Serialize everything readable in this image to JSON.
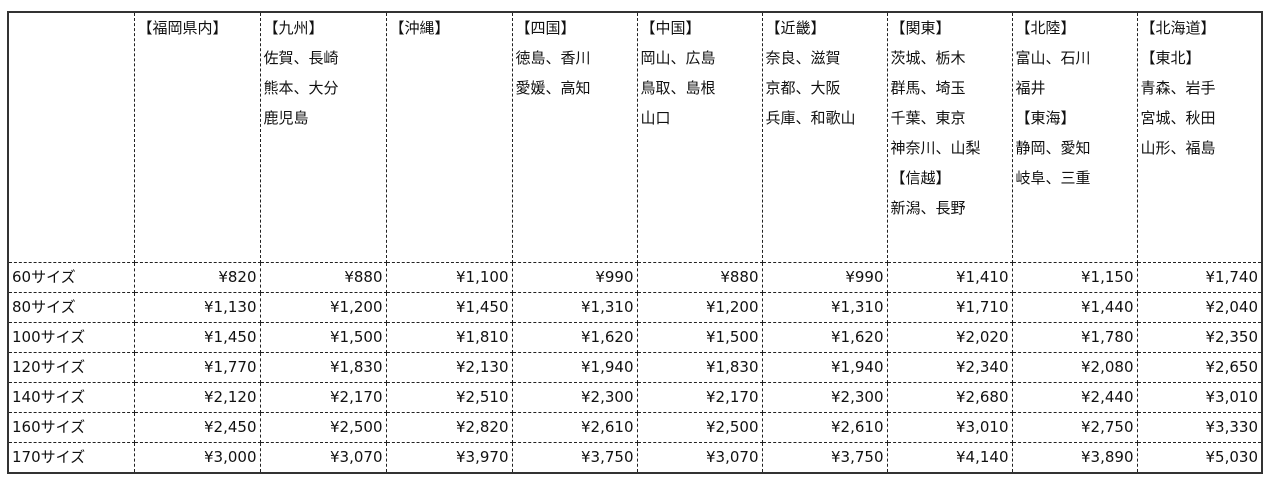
{
  "header": {
    "corner": "",
    "columns": [
      {
        "lines": [
          "【福岡県内】"
        ]
      },
      {
        "lines": [
          "【九州】",
          "佐賀、長崎",
          "熊本、大分",
          "鹿児島"
        ]
      },
      {
        "lines": [
          "【沖縄】"
        ]
      },
      {
        "lines": [
          "【四国】",
          "徳島、香川",
          "愛媛、高知"
        ]
      },
      {
        "lines": [
          "【中国】",
          "岡山、広島",
          "鳥取、島根",
          "山口"
        ]
      },
      {
        "lines": [
          "【近畿】",
          "奈良、滋賀",
          "京都、大阪",
          "兵庫、和歌山"
        ]
      },
      {
        "lines": [
          "【関東】",
          "茨城、栃木",
          "群馬、埼玉",
          "千葉、東京",
          "神奈川、山梨",
          "【信越】",
          "新潟、長野"
        ]
      },
      {
        "lines": [
          "【北陸】",
          "富山、石川",
          "福井",
          "【東海】",
          "静岡、愛知",
          "岐阜、三重"
        ]
      },
      {
        "lines": [
          "【北海道】",
          "【東北】",
          "青森、岩手",
          "宮城、秋田",
          "山形、福島"
        ]
      }
    ]
  },
  "rows": [
    {
      "size": "60サイズ",
      "prices": [
        "¥820",
        "¥880",
        "¥1,100",
        "¥990",
        "¥880",
        "¥990",
        "¥1,410",
        "¥1,150",
        "¥1,740"
      ]
    },
    {
      "size": "80サイズ",
      "prices": [
        "¥1,130",
        "¥1,200",
        "¥1,450",
        "¥1,310",
        "¥1,200",
        "¥1,310",
        "¥1,710",
        "¥1,440",
        "¥2,040"
      ]
    },
    {
      "size": "100サイズ",
      "prices": [
        "¥1,450",
        "¥1,500",
        "¥1,810",
        "¥1,620",
        "¥1,500",
        "¥1,620",
        "¥2,020",
        "¥1,780",
        "¥2,350"
      ]
    },
    {
      "size": "120サイズ",
      "prices": [
        "¥1,770",
        "¥1,830",
        "¥2,130",
        "¥1,940",
        "¥1,830",
        "¥1,940",
        "¥2,340",
        "¥2,080",
        "¥2,650"
      ]
    },
    {
      "size": "140サイズ",
      "prices": [
        "¥2,120",
        "¥2,170",
        "¥2,510",
        "¥2,300",
        "¥2,170",
        "¥2,300",
        "¥2,680",
        "¥2,440",
        "¥3,010"
      ]
    },
    {
      "size": "160サイズ",
      "prices": [
        "¥2,450",
        "¥2,500",
        "¥2,820",
        "¥2,610",
        "¥2,500",
        "¥2,610",
        "¥3,010",
        "¥2,750",
        "¥3,330"
      ]
    },
    {
      "size": "170サイズ",
      "prices": [
        "¥3,000",
        "¥3,070",
        "¥3,970",
        "¥3,750",
        "¥3,070",
        "¥3,750",
        "¥4,140",
        "¥3,890",
        "¥5,030"
      ]
    }
  ]
}
